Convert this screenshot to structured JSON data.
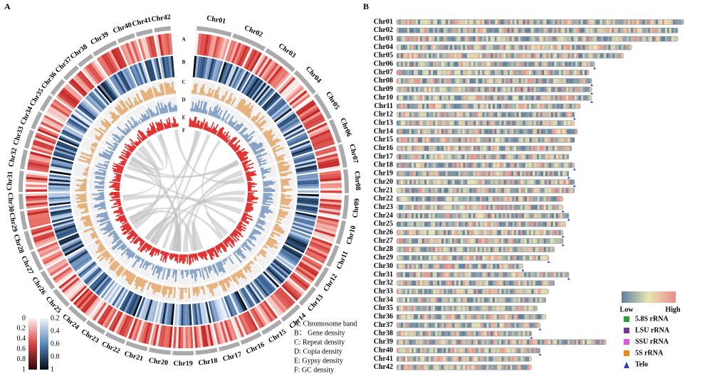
{
  "chromosomes": [
    "Chr01",
    "Chr02",
    "Chr03",
    "Chr04",
    "Chr05",
    "Chr06",
    "Chr07",
    "Chr08",
    "Chr09",
    "Chr10",
    "Chr11",
    "Chr12",
    "Chr13",
    "Chr14",
    "Chr15",
    "Chr16",
    "Chr17",
    "Chr18",
    "Chr19",
    "Chr20",
    "Chr21",
    "Chr22",
    "Chr23",
    "Chr24",
    "Chr25",
    "Chr26",
    "Chr27",
    "Chr28",
    "Chr29",
    "Chr30",
    "Chr31",
    "Chr32",
    "Chr33",
    "Chr34",
    "Chr35",
    "Chr36",
    "Chr37",
    "Chr38",
    "Chr39",
    "Chr40",
    "Chr41",
    "Chr42"
  ],
  "lengths": [
    100,
    98,
    98,
    82,
    79,
    69,
    67,
    68,
    68,
    68,
    64,
    62,
    62,
    63,
    62,
    61,
    60,
    62,
    60,
    62,
    62,
    58,
    58,
    60,
    59,
    58,
    58,
    55,
    53,
    44,
    60,
    55,
    53,
    52,
    49,
    52,
    50,
    47,
    73,
    50,
    47,
    47
  ],
  "panel_a": {
    "label": "A",
    "track_letters": [
      "A",
      "B",
      "C",
      "D",
      "E",
      "F"
    ],
    "red_scale_ticks": [
      "0",
      "0.2",
      "0.4",
      "0.6",
      "0.8",
      "1"
    ],
    "blue_scale_ticks": [
      "0.2",
      "0.4",
      "0.6",
      "0.8",
      "1"
    ],
    "track_key": [
      "A: Chromosome band",
      "B： Gene density",
      "C: Repeat density",
      "D: Copia density",
      "E: Gypsy density",
      "F: GC density"
    ]
  },
  "panel_b": {
    "label": "B",
    "low": "Low",
    "high": "High",
    "markers": [
      {
        "label": "5.8S rRNA",
        "color": "#2e9e3a"
      },
      {
        "label": "LSU rRNA",
        "color": "#6a3d9a"
      },
      {
        "label": "SSU rRNA",
        "color": "#e056e0"
      },
      {
        "label": "5S rRNA",
        "color": "#f08a0c"
      },
      {
        "label": "Telo",
        "color": "#3a3ad6"
      }
    ]
  }
}
